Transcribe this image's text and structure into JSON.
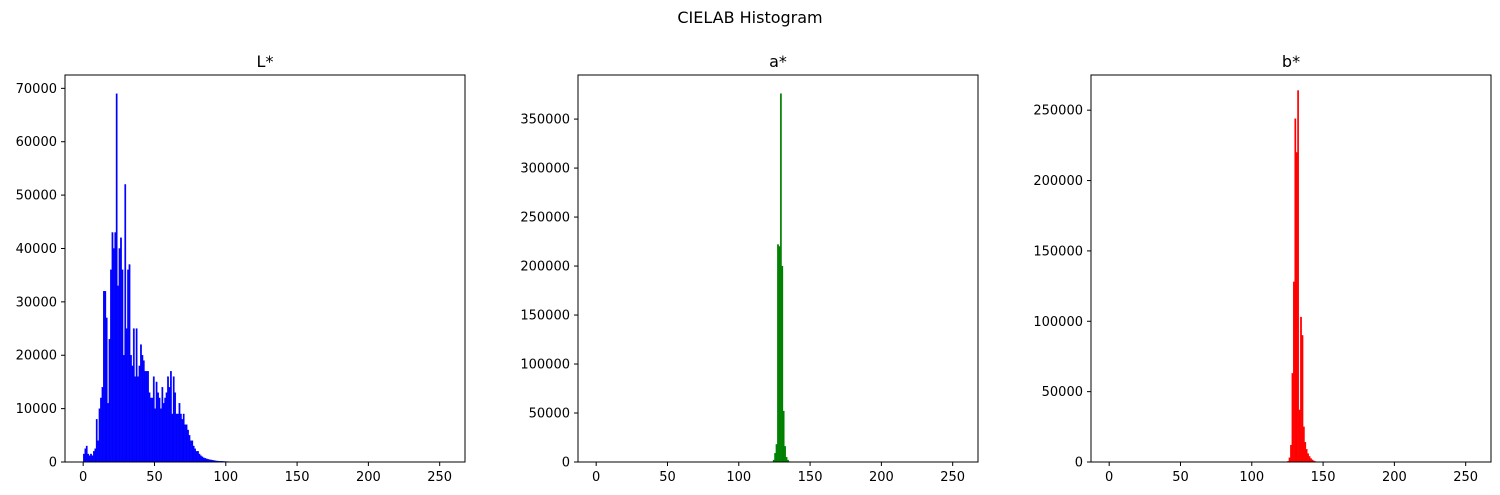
{
  "figure": {
    "suptitle": "CIELAB Histogram"
  },
  "chart_data": [
    {
      "type": "bar",
      "title": "L*",
      "color": "#0000ff",
      "xlim": [
        -12.75,
        267.75
      ],
      "ylim": [
        0,
        72500
      ],
      "xticks": [
        0,
        50,
        100,
        150,
        200,
        250
      ],
      "yticks": [
        0,
        10000,
        20000,
        30000,
        40000,
        50000,
        60000,
        70000
      ],
      "x": [
        0,
        1,
        2,
        3,
        4,
        5,
        6,
        7,
        8,
        9,
        10,
        11,
        12,
        13,
        14,
        15,
        16,
        17,
        18,
        19,
        20,
        21,
        22,
        23,
        24,
        25,
        26,
        27,
        28,
        29,
        30,
        31,
        32,
        33,
        34,
        35,
        36,
        37,
        38,
        39,
        40,
        41,
        42,
        43,
        44,
        45,
        46,
        47,
        48,
        49,
        50,
        51,
        52,
        53,
        54,
        55,
        56,
        57,
        58,
        59,
        60,
        61,
        62,
        63,
        64,
        65,
        66,
        67,
        68,
        69,
        70,
        71,
        72,
        73,
        74,
        75,
        76,
        77,
        78,
        79,
        80,
        81,
        82,
        83,
        84,
        85,
        86,
        87,
        88,
        89,
        90,
        91,
        92,
        93,
        94,
        95,
        96,
        97,
        98,
        99,
        100,
        101,
        102,
        103,
        104,
        105,
        106,
        107,
        108,
        109,
        110
      ],
      "values": [
        1500,
        2500,
        3000,
        1500,
        1200,
        1500,
        1200,
        2000,
        2500,
        8000,
        4000,
        10000,
        12000,
        14000,
        32000,
        32000,
        27000,
        11000,
        23000,
        36000,
        43000,
        40000,
        43000,
        69000,
        33000,
        40000,
        42000,
        36000,
        20000,
        52000,
        25000,
        36000,
        37000,
        20000,
        18000,
        25000,
        16000,
        25000,
        16000,
        18000,
        22000,
        20000,
        19000,
        17000,
        17000,
        17000,
        13000,
        12000,
        12000,
        16000,
        10000,
        15000,
        13000,
        12000,
        10000,
        14000,
        11000,
        12000,
        13000,
        16000,
        14000,
        17000,
        9000,
        16000,
        13000,
        9000,
        9000,
        11000,
        9000,
        8000,
        9000,
        7000,
        7000,
        6000,
        5000,
        4000,
        4000,
        3000,
        2500,
        2000,
        2000,
        1500,
        1200,
        1000,
        800,
        700,
        600,
        500,
        450,
        400,
        350,
        300,
        250,
        200,
        180,
        160,
        150,
        130,
        110,
        100,
        90,
        80,
        70,
        60,
        50,
        45,
        40,
        35,
        30,
        25,
        20
      ]
    },
    {
      "type": "bar",
      "title": "a*",
      "color": "#008000",
      "xlim": [
        -12.75,
        267.75
      ],
      "ylim": [
        0,
        395000
      ],
      "xticks": [
        0,
        50,
        100,
        150,
        200,
        250
      ],
      "yticks": [
        0,
        50000,
        100000,
        150000,
        200000,
        250000,
        300000,
        350000
      ],
      "x": [
        124,
        125,
        126,
        127,
        128,
        129,
        130,
        131,
        132,
        133,
        134,
        135
      ],
      "values": [
        2000,
        9000,
        18000,
        222000,
        220000,
        376000,
        200000,
        52000,
        16000,
        5000,
        2000,
        500
      ]
    },
    {
      "type": "bar",
      "title": "b*",
      "color": "#ff0000",
      "xlim": [
        -12.75,
        267.75
      ],
      "ylim": [
        0,
        275000
      ],
      "xticks": [
        0,
        50,
        100,
        150,
        200,
        250
      ],
      "yticks": [
        0,
        50000,
        100000,
        150000,
        200000,
        250000
      ],
      "x": [
        125,
        126,
        127,
        128,
        129,
        130,
        131,
        132,
        133,
        134,
        135,
        136,
        137,
        138,
        139,
        140,
        141,
        142,
        143,
        144,
        145
      ],
      "values": [
        500,
        3000,
        12000,
        63000,
        128000,
        244000,
        220000,
        264000,
        37000,
        103000,
        90000,
        25000,
        14000,
        9000,
        6000,
        4000,
        2500,
        1500,
        800,
        400,
        200
      ]
    }
  ]
}
